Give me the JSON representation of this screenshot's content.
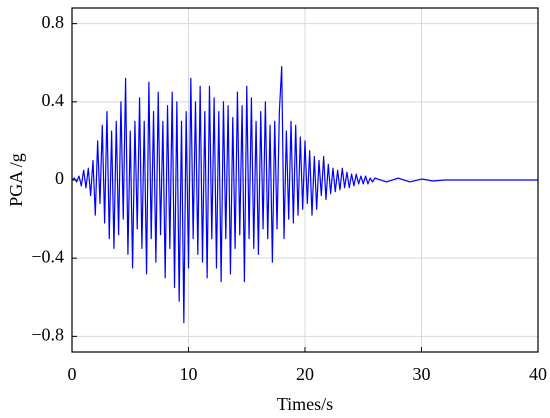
{
  "chart_data": {
    "type": "line",
    "xlabel": "Times/s",
    "ylabel": "PGA /g",
    "x": [
      0,
      0.2,
      0.4,
      0.6,
      0.8,
      1.0,
      1.2,
      1.4,
      1.6,
      1.8,
      2.0,
      2.2,
      2.4,
      2.6,
      2.8,
      3.0,
      3.2,
      3.4,
      3.6,
      3.8,
      4.0,
      4.2,
      4.4,
      4.6,
      4.8,
      5.0,
      5.2,
      5.4,
      5.6,
      5.8,
      6.0,
      6.2,
      6.4,
      6.6,
      6.8,
      7.0,
      7.2,
      7.4,
      7.6,
      7.8,
      8.0,
      8.2,
      8.4,
      8.6,
      8.8,
      9.0,
      9.2,
      9.4,
      9.6,
      9.8,
      10.0,
      10.2,
      10.4,
      10.6,
      10.8,
      11.0,
      11.2,
      11.4,
      11.6,
      11.8,
      12.0,
      12.2,
      12.4,
      12.6,
      12.8,
      13.0,
      13.2,
      13.4,
      13.6,
      13.8,
      14.0,
      14.2,
      14.4,
      14.6,
      14.8,
      15.0,
      15.2,
      15.4,
      15.6,
      15.8,
      16.0,
      16.2,
      16.4,
      16.6,
      16.8,
      17.0,
      17.2,
      17.4,
      17.6,
      17.8,
      18.0,
      18.2,
      18.4,
      18.6,
      18.8,
      19.0,
      19.2,
      19.4,
      19.6,
      19.8,
      20.0,
      20.2,
      20.4,
      20.6,
      20.8,
      21.0,
      21.2,
      21.4,
      21.6,
      21.8,
      22.0,
      22.2,
      22.4,
      22.6,
      22.8,
      23.0,
      23.2,
      23.4,
      23.6,
      23.8,
      24.0,
      24.2,
      24.4,
      24.6,
      24.8,
      25.0,
      25.2,
      25.4,
      25.6,
      25.8,
      26.0,
      27,
      28,
      29,
      30,
      31,
      32,
      33,
      34,
      35,
      36,
      37,
      38,
      39,
      40
    ],
    "series": [
      {
        "color": "#0000ff",
        "values": [
          0,
          0.01,
          -0.01,
          0.02,
          -0.03,
          0.05,
          -0.04,
          0.06,
          -0.08,
          0.1,
          -0.18,
          0.2,
          -0.12,
          0.28,
          -0.22,
          0.35,
          -0.3,
          0.25,
          -0.35,
          0.3,
          -0.28,
          0.4,
          -0.2,
          0.52,
          -0.38,
          0.25,
          -0.45,
          0.3,
          -0.25,
          0.42,
          -0.35,
          0.3,
          -0.48,
          0.5,
          -0.3,
          0.35,
          -0.42,
          0.45,
          -0.28,
          0.3,
          -0.5,
          0.38,
          -0.35,
          0.45,
          -0.55,
          0.4,
          -0.62,
          0.3,
          -0.73,
          0.35,
          -0.45,
          0.52,
          -0.3,
          0.4,
          -0.38,
          0.48,
          -0.42,
          0.35,
          -0.5,
          0.48,
          -0.3,
          0.42,
          -0.45,
          0.35,
          -0.52,
          0.4,
          -0.3,
          0.38,
          -0.48,
          0.32,
          -0.35,
          0.45,
          -0.28,
          0.38,
          -0.52,
          0.48,
          -0.3,
          0.42,
          -0.35,
          0.3,
          -0.38,
          0.35,
          -0.25,
          0.4,
          -0.3,
          0.28,
          -0.42,
          0.3,
          -0.25,
          0.35,
          0.58,
          -0.3,
          0.25,
          -0.2,
          0.3,
          -0.22,
          0.28,
          -0.18,
          0.22,
          -0.15,
          0.2,
          -0.12,
          0.15,
          -0.18,
          0.12,
          -0.15,
          0.1,
          -0.08,
          0.12,
          -0.1,
          0.08,
          -0.07,
          0.06,
          -0.06,
          0.05,
          -0.05,
          0.06,
          -0.04,
          0.04,
          -0.04,
          0.03,
          -0.03,
          0.03,
          -0.02,
          0.02,
          -0.02,
          0.02,
          -0.02,
          0.01,
          -0.01,
          0.01,
          -0.01,
          0.01,
          -0.01,
          0.005,
          -0.005,
          0,
          0,
          0,
          0,
          0,
          0,
          0,
          0,
          0
        ]
      }
    ],
    "xlim": [
      0,
      40
    ],
    "xticks": [
      0,
      10,
      20,
      30,
      40
    ],
    "ylim": [
      -0.88,
      0.88
    ],
    "yticks": [
      {
        "value": -0.8,
        "label": "−0.8"
      },
      {
        "value": -0.4,
        "label": "−0.4"
      },
      0,
      0.4,
      0.8
    ],
    "grid": true
  }
}
